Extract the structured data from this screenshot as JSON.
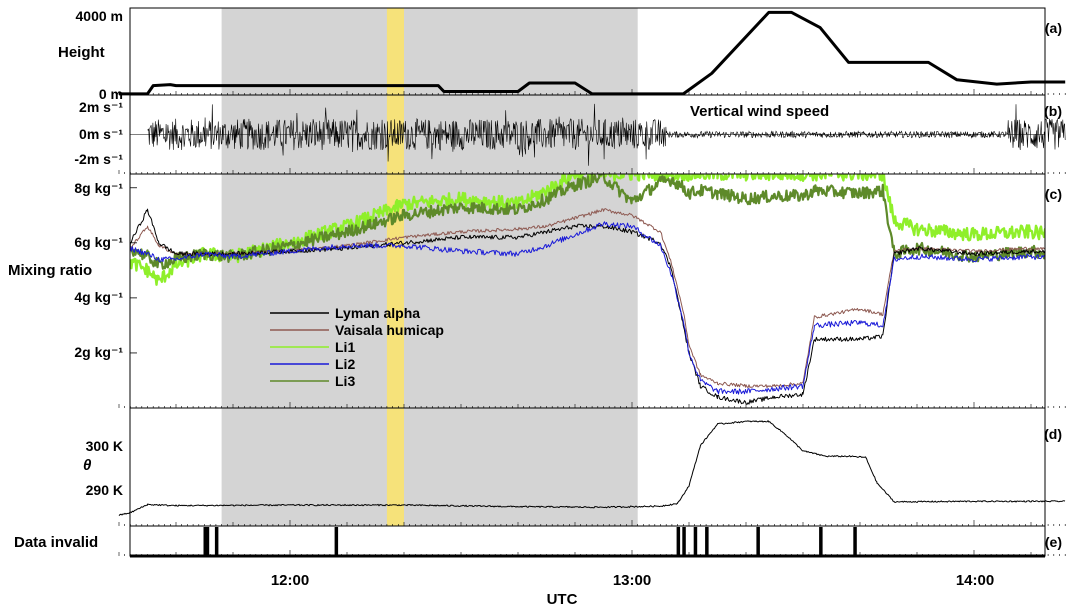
{
  "chart_data": {
    "type": "line",
    "xlabel": "UTC",
    "x_ticks": [
      "12:00",
      "13:00",
      "14:00"
    ],
    "x_range_utc": [
      "11:30",
      "14:17"
    ],
    "shaded_interval_utc": [
      "11:48",
      "13:01"
    ],
    "highlight_interval_utc": [
      "12:17",
      "12:20"
    ],
    "colors": {
      "shade": "#d4d4d4",
      "highlight": "#f6e27a",
      "lyman": "#000000",
      "vaisala": "#8e5a52",
      "li1": "#8fef2a",
      "li2": "#1a1ad8",
      "li3": "#5e8a2a"
    },
    "panels": {
      "a": {
        "panel_label": "(a)",
        "ylabel": "Height",
        "y_ticks": [
          "4000 m",
          "0 m"
        ],
        "ylim": [
          0,
          4000
        ],
        "series": [
          {
            "x": [
              "11:30",
              "11:35",
              "11:36",
              "11:39",
              "11:40",
              "12:20",
              "12:26",
              "12:27",
              "12:40",
              "12:42",
              "12:50",
              "12:53",
              "12:56",
              "13:00",
              "13:03",
              "13:05",
              "13:09",
              "13:14",
              "13:24",
              "13:28",
              "13:33",
              "13:38",
              "13:45",
              "13:52",
              "13:57",
              "14:04",
              "14:10",
              "14:16"
            ],
            "values": [
              50,
              50,
              430,
              480,
              430,
              430,
              430,
              160,
              160,
              550,
              550,
              50,
              50,
              50,
              50,
              50,
              50,
              1000,
              3800,
              3800,
              3100,
              1500,
              1500,
              1500,
              700,
              500,
              600,
              600
            ]
          }
        ]
      },
      "b": {
        "panel_label": "(b)",
        "title": "Vertical wind speed",
        "y_ticks": [
          "2m s⁻¹",
          "0m s⁻¹",
          "-2m s⁻¹"
        ],
        "ylim": [
          -3,
          3
        ],
        "series": [
          {
            "segments_utc": [
              [
                "11:35",
                "13:06",
                "turbulent ±1.5"
              ],
              [
                "13:06",
                "14:06",
                "calm ±0.3"
              ],
              [
                "14:06",
                "14:16",
                "turbulent ±1.5"
              ]
            ]
          }
        ]
      },
      "c": {
        "panel_label": "(c)",
        "ylabel": "Mixing ratio",
        "y_ticks": [
          "8g kg⁻¹",
          "6g kg⁻¹",
          "4g kg⁻¹",
          "2g kg⁻¹"
        ],
        "ylim": [
          0,
          8.5
        ],
        "legend": [
          "Lyman alpha",
          "Vaisala humicap",
          "Li1",
          "Li2",
          "Li3"
        ],
        "x": [
          "11:30",
          "11:32",
          "11:35",
          "11:37",
          "11:40",
          "11:45",
          "11:50",
          "12:00",
          "12:10",
          "12:20",
          "12:30",
          "12:40",
          "12:45",
          "12:50",
          "12:55",
          "13:00",
          "13:05",
          "13:07",
          "13:09",
          "13:10",
          "13:12",
          "13:15",
          "13:20",
          "13:25",
          "13:30",
          "13:32",
          "13:40",
          "13:44",
          "13:46",
          "13:50",
          "14:00",
          "14:10",
          "14:16"
        ],
        "series": [
          {
            "name": "Lyman alpha",
            "values": [
              0,
              6.0,
              7.2,
              6.0,
              5.6,
              5.6,
              5.6,
              5.7,
              5.8,
              6.0,
              6.2,
              6.2,
              6.4,
              6.6,
              6.6,
              6.4,
              6.0,
              5.0,
              3.0,
              2.0,
              0.8,
              0.4,
              0.2,
              0.4,
              0.5,
              2.5,
              2.5,
              2.6,
              5.6,
              5.8,
              5.6,
              5.7,
              5.6
            ]
          },
          {
            "name": "Vaisala humicap",
            "values": [
              0,
              5.8,
              6.6,
              5.9,
              5.6,
              5.6,
              5.6,
              5.7,
              5.9,
              6.2,
              6.4,
              6.5,
              6.6,
              6.9,
              7.2,
              7.0,
              6.4,
              5.2,
              3.5,
              2.3,
              1.2,
              0.9,
              0.8,
              0.8,
              0.9,
              3.3,
              3.6,
              3.4,
              5.7,
              5.8,
              5.7,
              5.8,
              5.7
            ]
          },
          {
            "name": "Li1",
            "values": [
              5.0,
              5.3,
              5.0,
              4.6,
              5.2,
              5.6,
              5.5,
              6.0,
              6.6,
              7.4,
              7.6,
              7.4,
              7.9,
              8.5,
              8.5,
              8.5,
              8.5,
              8.5,
              8.5,
              8.5,
              8.5,
              8.5,
              8.5,
              8.5,
              8.5,
              8.5,
              8.5,
              8.5,
              6.8,
              6.5,
              6.3,
              6.4,
              6.2
            ]
          },
          {
            "name": "Li2",
            "values": [
              5.6,
              5.8,
              5.6,
              5.4,
              5.4,
              5.6,
              5.5,
              5.7,
              5.9,
              5.9,
              5.7,
              5.6,
              5.9,
              6.3,
              6.7,
              6.6,
              5.9,
              4.8,
              3.2,
              2.0,
              1.0,
              0.6,
              0.6,
              0.7,
              0.8,
              3.0,
              3.1,
              3.0,
              5.4,
              5.5,
              5.4,
              5.5,
              5.4
            ]
          },
          {
            "name": "Li3",
            "values": [
              5.6,
              5.8,
              5.5,
              5.2,
              5.4,
              5.6,
              5.5,
              5.9,
              6.4,
              7.0,
              7.3,
              7.2,
              7.6,
              8.1,
              8.4,
              7.5,
              8.2,
              8.3,
              8.0,
              7.8,
              7.9,
              7.8,
              7.6,
              7.7,
              7.7,
              7.9,
              7.8,
              7.9,
              5.6,
              5.8,
              5.5,
              5.7,
              5.5
            ]
          }
        ]
      },
      "d": {
        "panel_label": "(d)",
        "ylabel": "θ",
        "y_ticks": [
          "300  K",
          "290  K"
        ],
        "ylim": [
          282,
          304
        ],
        "series": [
          {
            "x": [
              "11:30",
              "11:32",
              "11:35",
              "11:40",
              "12:00",
              "12:20",
              "12:40",
              "12:55",
              "13:05",
              "13:08",
              "13:10",
              "13:12",
              "13:15",
              "13:20",
              "13:24",
              "13:27",
              "13:30",
              "13:34",
              "13:38",
              "13:41",
              "13:43",
              "13:46",
              "14:00",
              "14:16"
            ],
            "values": [
              284,
              284.5,
              286,
              285.8,
              285.9,
              285.9,
              285.6,
              285.5,
              285.7,
              286.2,
              289.5,
              297,
              301,
              301.5,
              301.5,
              299,
              296,
              295,
              295,
              294.8,
              290,
              286.5,
              286.6,
              286.6
            ]
          }
        ]
      },
      "e": {
        "panel_label": "(e)",
        "ylabel": "Data invalid",
        "invalid_intervals_utc": [
          [
            "11:45",
            "11:46"
          ],
          [
            "11:47",
            "11:47"
          ],
          [
            "12:08",
            "12:08"
          ],
          [
            "13:08",
            "13:08"
          ],
          [
            "13:09",
            "13:09"
          ],
          [
            "13:11",
            "13:11"
          ],
          [
            "13:13",
            "13:13"
          ],
          [
            "13:22",
            "13:22"
          ],
          [
            "13:33",
            "13:33"
          ],
          [
            "13:39",
            "13:39"
          ]
        ]
      }
    }
  }
}
